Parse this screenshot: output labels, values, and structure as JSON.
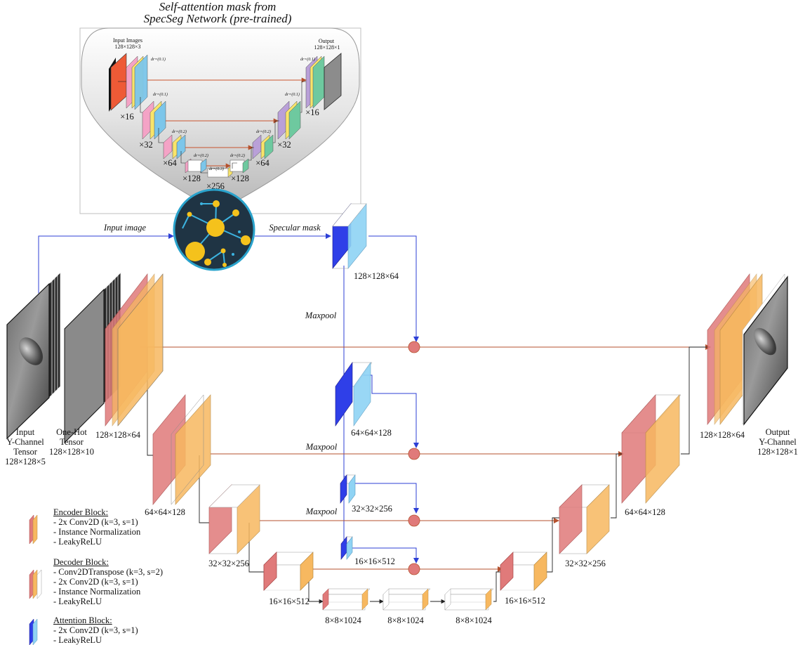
{
  "title": {
    "line1": "Self-attention mask from",
    "line2": "SpecSeg Network (pre-trained)"
  },
  "inset": {
    "input_label": "Input Images",
    "input_dims": "128×128×3",
    "output_label": "Output",
    "output_dims": "128×128×1",
    "filters_left": [
      "×16",
      "×32",
      "×64",
      "×128"
    ],
    "filters_bottom": "×256",
    "filters_right": [
      "×128",
      "×64",
      "×32",
      "×16"
    ],
    "dropout_labels": [
      "dr=(0.1)",
      "dr=(0.1)",
      "dr=(0.2)",
      "dr=(0.2)",
      "dr=(0.3)",
      "dr=(0.2)",
      "dr=(0.2)",
      "dr=(0.1)",
      "dr=(0.1)"
    ]
  },
  "arrows": {
    "input_image": "Input image",
    "specular_mask": "Specular mask",
    "maxpool": "Maxpool"
  },
  "blocks": {
    "input_tensor": [
      "Input",
      "Y-Channel",
      "Tensor",
      "128×128×5"
    ],
    "onehot_tensor": [
      "One-Hot",
      "Tensor",
      "128×128×10"
    ],
    "output_tensor": [
      "Output",
      "Y-Channel",
      "128×128×1"
    ],
    "enc1": "128×128×64",
    "enc2": "64×64×128",
    "enc3": "32×32×256",
    "enc4": "16×16×512",
    "bottleneck": [
      "8×8×1024",
      "8×8×1024",
      "8×8×1024"
    ],
    "att1": "128×128×64",
    "att2": "64×64×128",
    "att3": "32×32×256",
    "att4": "16×16×512",
    "dec4": "16×16×512",
    "dec3": "32×32×256",
    "dec2": "64×64×128",
    "dec1": "128×128×64"
  },
  "legend": {
    "encoder": {
      "title": "Encoder Block:",
      "items": [
        "- 2x Conv2D (k=3, s=1)",
        "- Instance Normalization",
        "- LeakyReLU"
      ]
    },
    "decoder": {
      "title": "Decoder Block:",
      "items": [
        "- Conv2DTranspose (k=3, s=2)",
        "- 2x Conv2D (k=3, s=1)",
        "- Instance Normalization",
        "- LeakyReLU"
      ]
    },
    "attention": {
      "title": "Attention Block:",
      "items": [
        "- 2x Conv2D (k=3, s=1)",
        "- LeakyReLU"
      ]
    }
  },
  "colors": {
    "encoder_red": "#e07a7a",
    "decoder_orange": "#f7b860",
    "attention_blue": "#2f3fe8",
    "attention_light": "#8fd3f4",
    "skip_line": "#b5522e",
    "attention_line": "#2c3fd6",
    "merge_node": "#e07a7a"
  }
}
